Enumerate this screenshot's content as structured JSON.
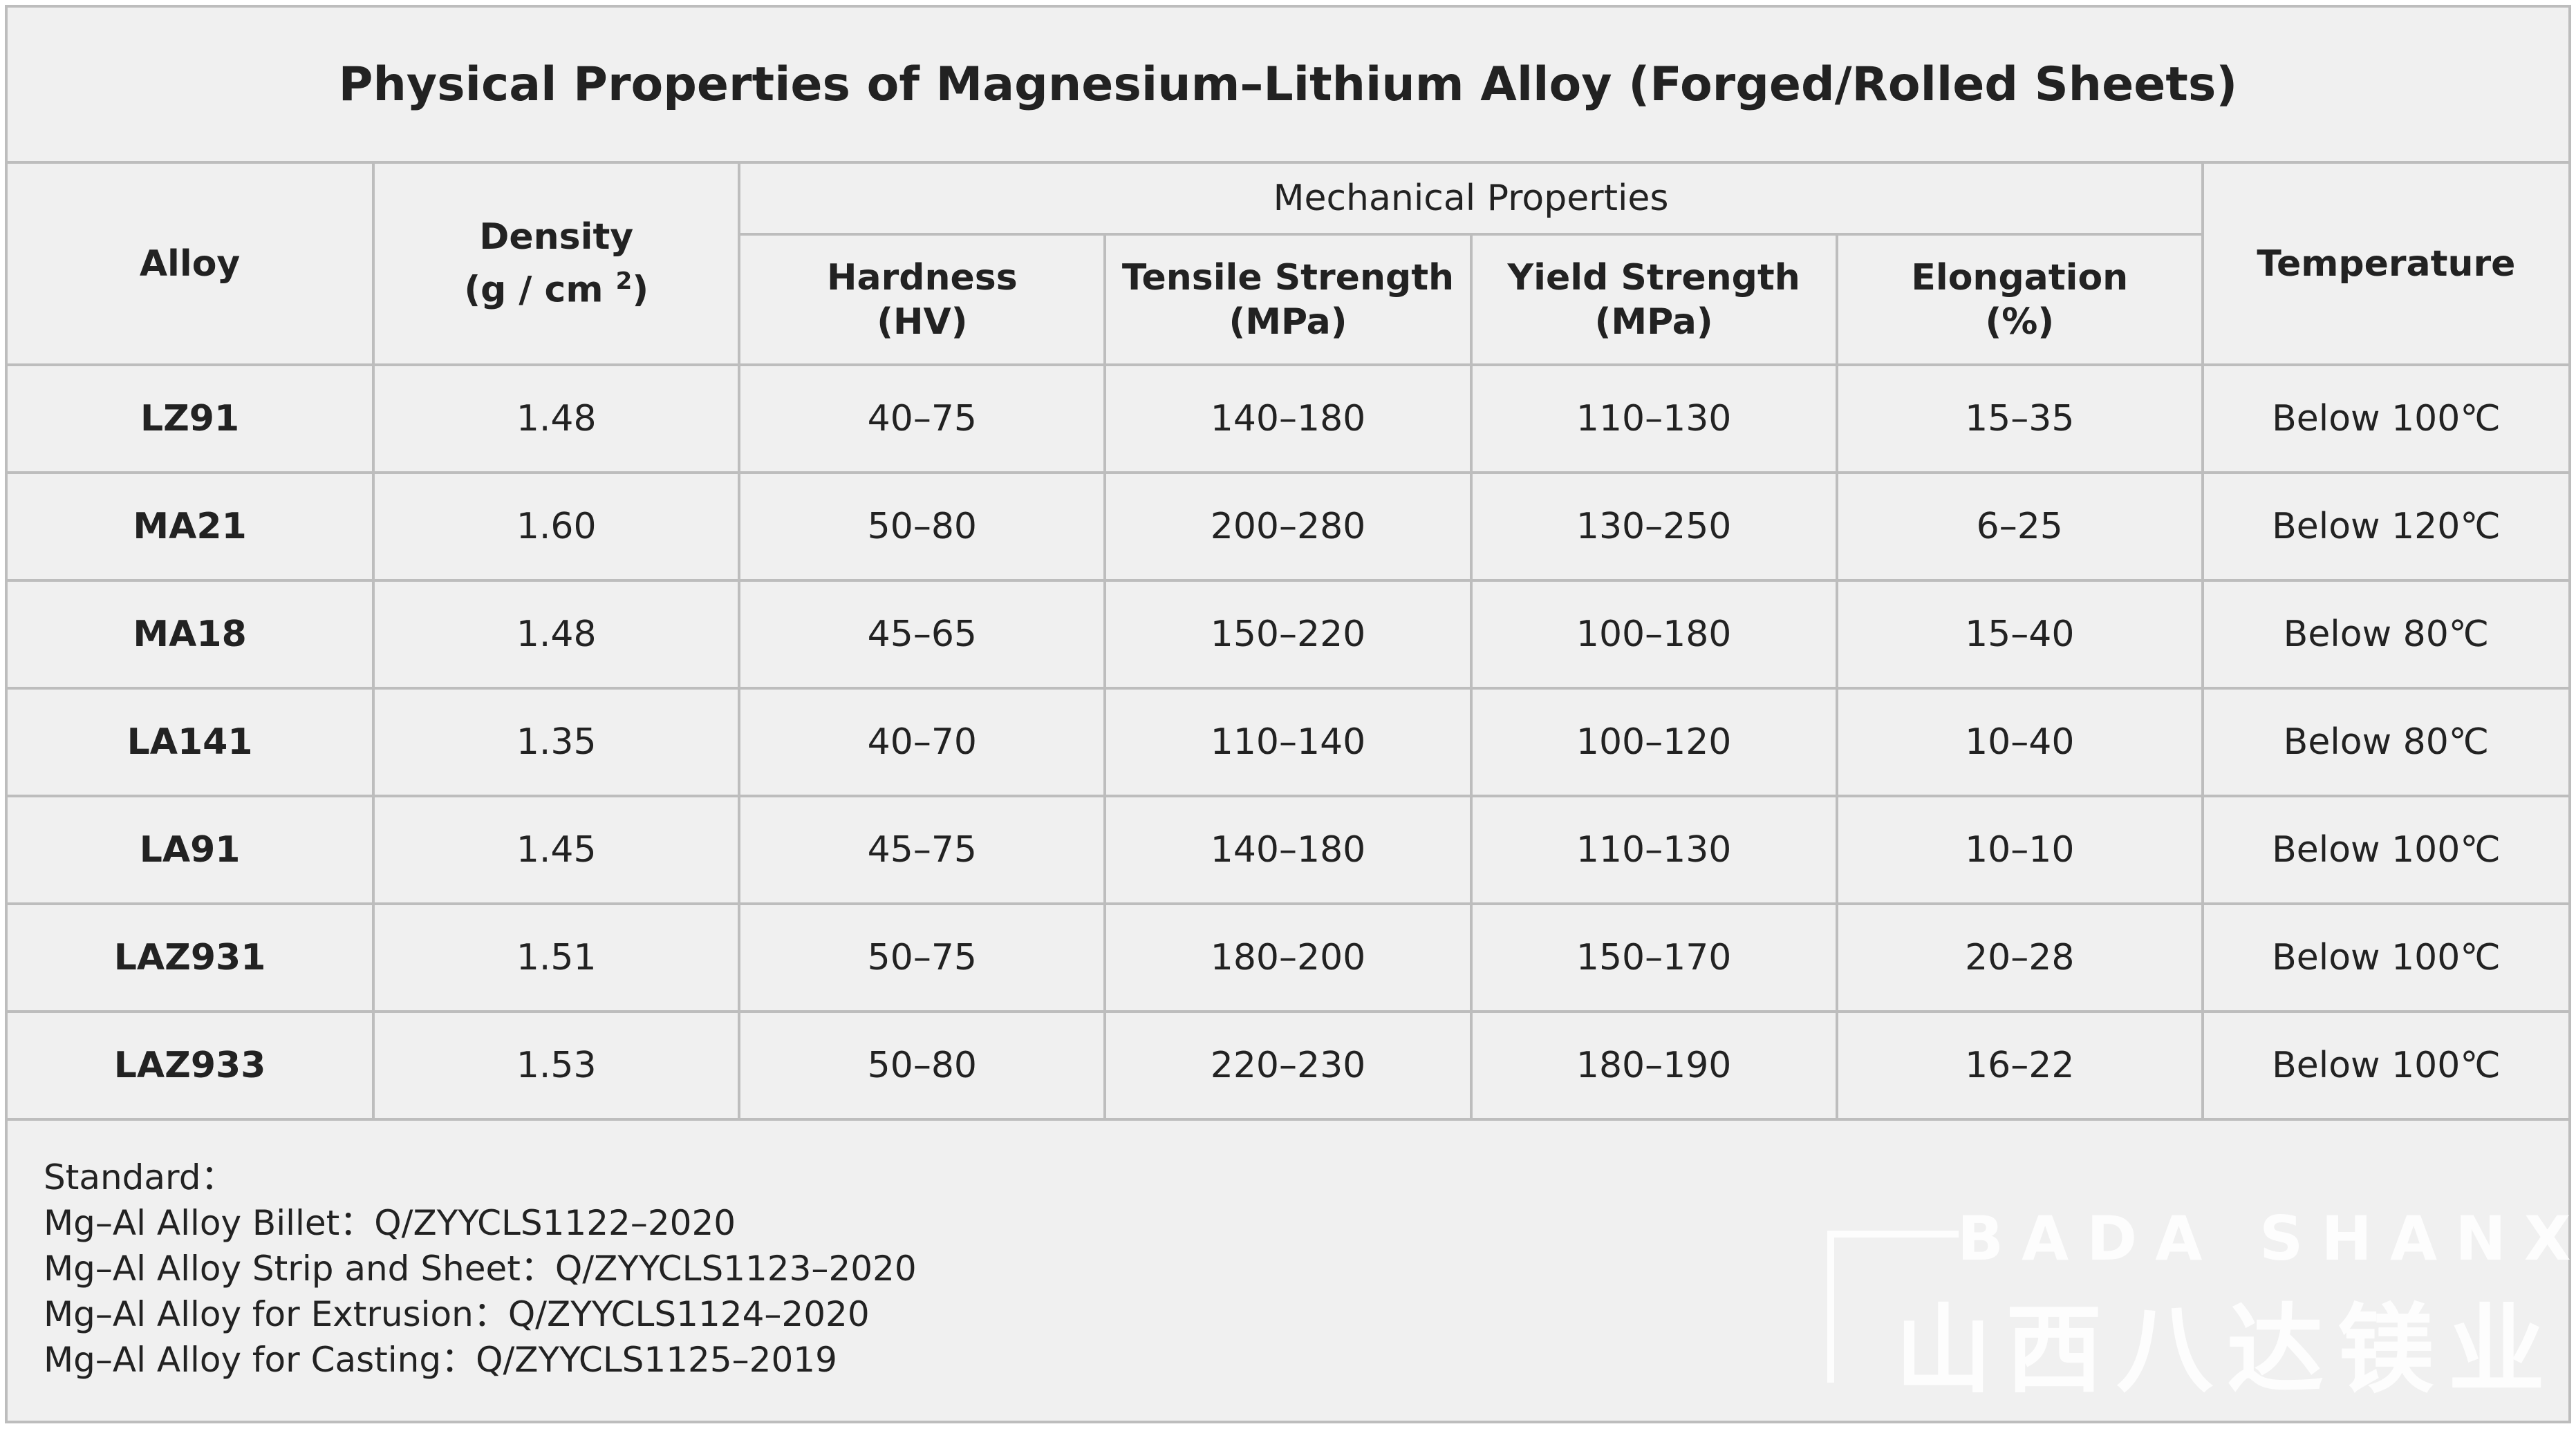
{
  "title": "Physical Properties of Magnesium–Lithium Alloy (Forged/Rolled Sheets)",
  "header": {
    "alloy": "Alloy",
    "density": "Density",
    "density_unit": "(g / cm",
    "density_exp": "2",
    "density_close": ")",
    "mechanical": "Mechanical Properties",
    "columns": [
      {
        "name": "Hardness",
        "unit": "(HV)"
      },
      {
        "name": "Tensile Strength",
        "unit": "(MPa)"
      },
      {
        "name": "Yield Strength",
        "unit": "(MPa)"
      },
      {
        "name": "Elongation",
        "unit": "(%)"
      }
    ],
    "temperature": "Temperature"
  },
  "rows": [
    [
      "LZ91",
      "1.48",
      "40–75",
      "140–180",
      "110–130",
      "15–35",
      "Below 100℃"
    ],
    [
      "MA21",
      "1.60",
      "50–80",
      "200–280",
      "130–250",
      "6–25",
      "Below 120℃"
    ],
    [
      "MA18",
      "1.48",
      "45–65",
      "150–220",
      "100–180",
      "15–40",
      "Below 80℃"
    ],
    [
      "LA141",
      "1.35",
      "40–70",
      "110–140",
      "100–120",
      "10–40",
      "Below 80℃"
    ],
    [
      "LA91",
      "1.45",
      "45–75",
      "140–180",
      "110–130",
      "10–10",
      "Below 100℃"
    ],
    [
      "LAZ931",
      "1.51",
      "50–75",
      "180–200",
      "150–170",
      "20–28",
      "Below 100℃"
    ],
    [
      "LAZ933",
      "1.53",
      "50–80",
      "220–230",
      "180–190",
      "16–22",
      "Below 100℃"
    ]
  ],
  "footer": {
    "heading": "Standard：",
    "lines": [
      "Mg–Al Alloy Billet：Q/ZYYCLS1122–2020",
      "Mg–Al Alloy Strip and Sheet：Q/ZYYCLS1123–2020",
      "Mg–Al Alloy for Extrusion：Q/ZYYCLS1124–2020",
      "Mg–Al Alloy for Casting：Q/ZYYCLS1125–2019"
    ]
  },
  "watermark": {
    "latin": "BADA SHANXI",
    "chinese": "山西八达镁业"
  }
}
